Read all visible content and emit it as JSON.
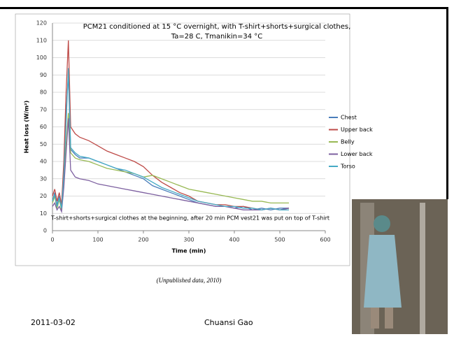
{
  "chart_data": {
    "type": "line",
    "title": [
      "PCM21 conditioned at 15 °C overnight, with T-shirt+shorts+surgical clothes,",
      "Ta=28 C, Tmanikin=34 °C"
    ],
    "annotation": "T-shirt+shorts+surgical clothes at the beginning, after 20 min PCM vest21 was put on top of T-shirt",
    "x_label": "Time (min)",
    "y_label": "Heat loss (W/m²)",
    "x": [
      0,
      5,
      10,
      15,
      20,
      25,
      30,
      35,
      40,
      50,
      60,
      80,
      100,
      120,
      140,
      160,
      180,
      200,
      220,
      240,
      260,
      280,
      300,
      320,
      340,
      360,
      380,
      400,
      420,
      440,
      460,
      480,
      500,
      520
    ],
    "series": [
      {
        "name": "Chest",
        "color": "#4a7ebb",
        "values": [
          17,
          22,
          15,
          20,
          14,
          30,
          68,
          90,
          47,
          44,
          42,
          42,
          40,
          38,
          36,
          34,
          32,
          30,
          26,
          24,
          22,
          20,
          18,
          16,
          15,
          14,
          14,
          13,
          14,
          12,
          13,
          12,
          13,
          13
        ]
      },
      {
        "name": "Upper back",
        "color": "#be4b48",
        "values": [
          20,
          24,
          17,
          22,
          15,
          40,
          80,
          110,
          60,
          56,
          54,
          52,
          49,
          46,
          44,
          42,
          40,
          37,
          32,
          28,
          25,
          22,
          20,
          17,
          16,
          15,
          15,
          14,
          14,
          13,
          12,
          13,
          12,
          13
        ]
      },
      {
        "name": "Belly",
        "color": "#98b954",
        "values": [
          16,
          20,
          13,
          18,
          12,
          30,
          50,
          68,
          45,
          42,
          41,
          40,
          38,
          36,
          35,
          34,
          33,
          31,
          32,
          30,
          28,
          26,
          24,
          23,
          22,
          21,
          20,
          19,
          18,
          17,
          17,
          16,
          16,
          16
        ]
      },
      {
        "name": "Lower back",
        "color": "#7d60a0",
        "values": [
          14,
          16,
          12,
          14,
          11,
          25,
          45,
          65,
          35,
          31,
          30,
          29,
          27,
          26,
          25,
          24,
          23,
          22,
          21,
          20,
          19,
          18,
          17,
          16,
          15,
          14,
          14,
          13,
          12,
          12,
          12,
          13,
          12,
          13
        ]
      },
      {
        "name": "Torso",
        "color": "#46aac5",
        "values": [
          17,
          21,
          14,
          19,
          13,
          32,
          62,
          94,
          48,
          45,
          43,
          42,
          40,
          38,
          36,
          35,
          33,
          31,
          28,
          25,
          23,
          21,
          19,
          17,
          16,
          15,
          14,
          14,
          13,
          13,
          12,
          13,
          12,
          12
        ]
      }
    ],
    "xlim": [
      0,
      600
    ],
    "xticks": [
      0,
      100,
      200,
      300,
      400,
      500,
      600
    ],
    "ylim": [
      0,
      120
    ],
    "yticks": [
      0,
      10,
      20,
      30,
      40,
      50,
      60,
      70,
      80,
      90,
      100,
      110,
      120
    ],
    "grid": true,
    "legend": "right"
  },
  "caption": "(Unpublished data, 2010)",
  "footer": {
    "date": "2011-03-02",
    "author": "Chuansi Gao"
  }
}
